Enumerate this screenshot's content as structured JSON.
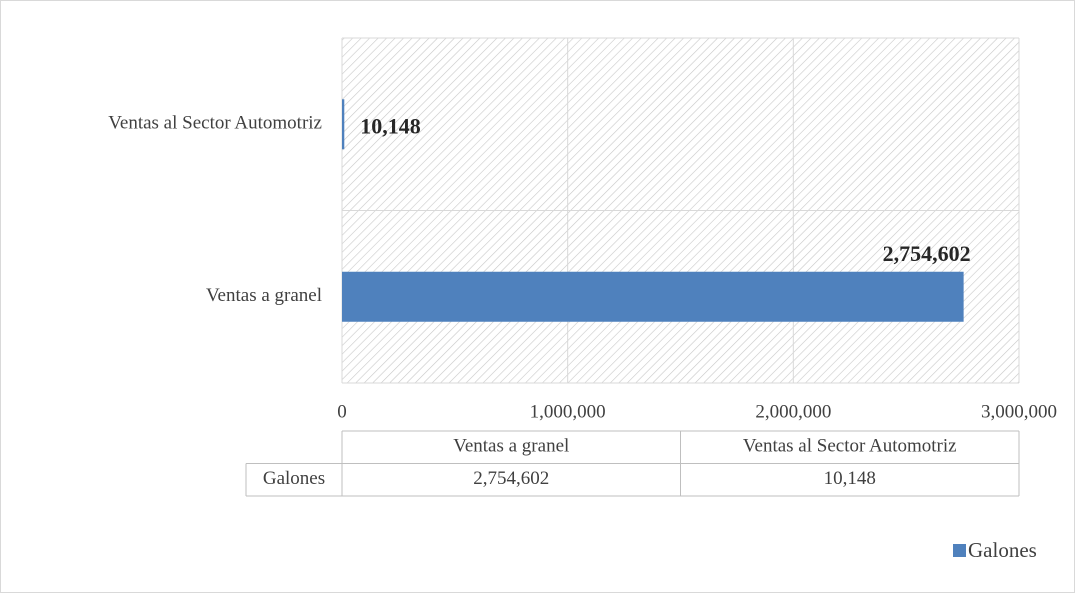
{
  "chart_data": {
    "type": "barh",
    "categories": [
      "Ventas a granel",
      "Ventas al Sector Automotriz"
    ],
    "series": [
      {
        "name": "Galones",
        "color": "#4f81bd",
        "values": [
          2754602,
          10148
        ],
        "value_labels": [
          "2,754,602",
          "10,148"
        ]
      }
    ],
    "xlim": [
      0,
      3000000
    ],
    "xticks": [
      0,
      {
        "value": 1000000,
        "label": "1,000,000"
      },
      {
        "value": 2000000,
        "label": "2,000,000"
      },
      {
        "value": 3000000,
        "label": "3,000,000"
      }
    ],
    "grid": true,
    "legend": "bottom-right",
    "data_table": true
  }
}
